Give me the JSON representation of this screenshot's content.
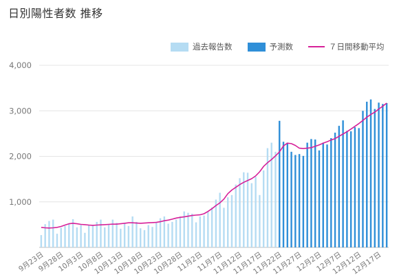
{
  "page": {
    "title": "日別陽性者数 推移"
  },
  "legend": {
    "past_label": "過去報告数",
    "forecast_label": "予測数",
    "ma_label": "７日間移動平均"
  },
  "colors": {
    "past": "#b5dcf3",
    "forecast": "#2f8fd8",
    "forecast_edge": "#4aa3a8",
    "ma": "#d61f98",
    "grid": "#e4e4e4",
    "axis": "#bdbdbd"
  },
  "chart_data": {
    "type": "bar",
    "title": "日別陽性者数 推移",
    "xlabel": "",
    "ylabel": "",
    "ylim": [
      0,
      4000
    ],
    "yticks": [
      1000,
      2000,
      3000,
      4000
    ],
    "ytick_labels": [
      "1,000",
      "2,000",
      "3,000",
      "4,000"
    ],
    "grid": true,
    "legend_position": "top-right",
    "x_start": "9月23日",
    "x_tick_labels": [
      "9月23日",
      "9月28日",
      "10月3日",
      "10月8日",
      "10月13日",
      "10月18日",
      "10月23日",
      "10月28日",
      "11月2日",
      "11月7日",
      "11月12日",
      "11月17日",
      "11月22日",
      "11月27日",
      "12月2日",
      "12月7日",
      "12月12日",
      "12月17日"
    ],
    "series": [
      {
        "name": "過去報告数",
        "kind": "bar",
        "values": [
          270,
          510,
          580,
          610,
          300,
          430,
          470,
          520,
          620,
          440,
          490,
          320,
          490,
          480,
          560,
          610,
          440,
          510,
          610,
          540,
          410,
          520,
          470,
          680,
          560,
          420,
          380,
          490,
          450,
          540,
          640,
          680,
          520,
          560,
          610,
          680,
          790,
          760,
          740,
          550,
          680,
          700,
          780,
          880,
          1050,
          1200,
          870,
          1100,
          1150,
          1380,
          1520,
          1650,
          1640,
          1410,
          1550,
          1150,
          1690,
          2180,
          2300,
          2100
        ]
      },
      {
        "name": "予測数",
        "kind": "bar",
        "values": [
          2780,
          2320,
          2300,
          2100,
          2030,
          2050,
          2010,
          2300,
          2380,
          2370,
          2130,
          2300,
          2260,
          2400,
          2520,
          2670,
          2790,
          2560,
          2550,
          2640,
          2620,
          3000,
          3200,
          3250,
          3040,
          3180,
          3150,
          3170
        ]
      },
      {
        "name": "７日間移動平均",
        "kind": "line",
        "values": [
          440,
          430,
          425,
          430,
          440,
          460,
          490,
          520,
          530,
          520,
          505,
          500,
          490,
          485,
          490,
          495,
          500,
          505,
          510,
          510,
          520,
          530,
          540,
          540,
          535,
          530,
          535,
          540,
          545,
          550,
          565,
          585,
          600,
          620,
          645,
          660,
          670,
          685,
          700,
          710,
          715,
          740,
          790,
          850,
          920,
          980,
          1060,
          1180,
          1260,
          1320,
          1380,
          1430,
          1470,
          1510,
          1570,
          1660,
          1780,
          1860,
          1930,
          2010,
          2100,
          2230,
          2290,
          2280,
          2240,
          2180,
          2170,
          2180,
          2190,
          2220,
          2250,
          2290,
          2320,
          2360,
          2390,
          2440,
          2490,
          2540,
          2600,
          2660,
          2720,
          2790,
          2860,
          2920,
          2970,
          3040,
          3100,
          3170
        ]
      }
    ]
  }
}
